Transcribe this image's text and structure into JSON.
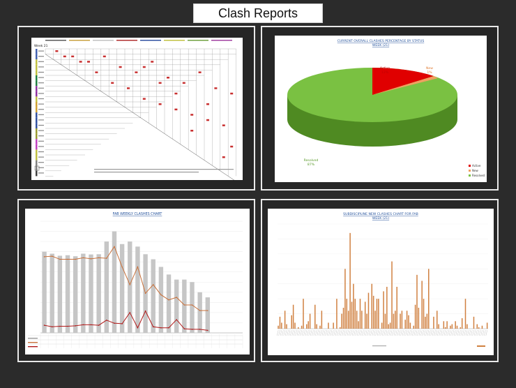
{
  "header": {
    "title": "Clash Reports"
  },
  "matrix_report": {
    "corner_label": "Week 21"
  },
  "pie_report": {
    "title": "CURRENT OVERALL CLASHES PERCENTAGE BY STATUS",
    "subtitle": "WEEK (21)",
    "chart_data": {
      "type": "pie",
      "labels": [
        "Active",
        "New",
        "Resolved"
      ],
      "values": [
        12,
        1,
        87
      ],
      "colors": [
        "#e00000",
        "#f0a060",
        "#7ac142"
      ]
    },
    "slice_labels": {
      "active_name": "Active",
      "active_pct": "12%",
      "new_name": "New",
      "new_pct": "1%",
      "resolved_name": "Resolved",
      "resolved_pct": "87%"
    },
    "legend": [
      "Active",
      "New",
      "Resolved"
    ]
  },
  "weekly_report": {
    "title": "FAB WEEKLY CLASHES CHART",
    "chart_data": {
      "type": "bar",
      "categories": [
        "1",
        "2",
        "3",
        "4",
        "5",
        "6",
        "7",
        "8",
        "9",
        "10",
        "11",
        "12",
        "13",
        "14",
        "15",
        "16",
        "17",
        "18",
        "19",
        "20",
        "21",
        "22",
        "23",
        "24",
        "25",
        "26"
      ],
      "series": [
        {
          "name": "Total",
          "values": [
            1600,
            1560,
            1520,
            1530,
            1510,
            1560,
            1545,
            1550,
            1800,
            2000,
            1750,
            1800,
            1700,
            1550,
            1450,
            1300,
            1150,
            1050,
            1050,
            1000,
            800,
            700,
            0,
            0,
            0,
            0
          ]
        },
        {
          "name": "Active",
          "values": [
            1500,
            1510,
            1450,
            1450,
            1450,
            1480,
            1460,
            1480,
            1470,
            1700,
            1300,
            950,
            1300,
            780,
            950,
            750,
            650,
            700,
            550,
            550,
            440,
            440,
            0,
            0,
            0,
            0
          ]
        },
        {
          "name": "New",
          "values": [
            150,
            120,
            130,
            130,
            140,
            160,
            160,
            150,
            250,
            190,
            180,
            400,
            100,
            430,
            120,
            100,
            100,
            260,
            80,
            70,
            70,
            50,
            0,
            0,
            0,
            0
          ]
        }
      ],
      "ylim": [
        0,
        2200
      ]
    }
  },
  "sub_report": {
    "title": "SUBDISCIPLINE NEW CLASHES CHART FOR FAB",
    "subtitle": "WEEK (21)",
    "chart_data": {
      "type": "bar",
      "values": [
        2,
        8,
        4,
        0,
        12,
        3,
        0,
        0,
        9,
        16,
        4,
        0,
        1,
        0,
        2,
        20,
        0,
        3,
        5,
        10,
        0,
        0,
        16,
        3,
        0,
        2,
        12,
        0,
        0,
        0,
        4,
        0,
        0,
        4,
        0,
        20,
        0,
        1,
        10,
        14,
        40,
        20,
        12,
        64,
        18,
        30,
        20,
        12,
        5,
        20,
        12,
        0,
        18,
        10,
        24,
        0,
        30,
        22,
        12,
        20,
        20,
        0,
        4,
        25,
        10,
        28,
        3,
        4,
        45,
        10,
        12,
        28,
        0,
        10,
        12,
        0,
        6,
        12,
        9,
        4,
        0,
        2,
        16,
        36,
        14,
        0,
        32,
        20,
        8,
        10,
        40,
        0,
        0,
        8,
        0,
        12,
        3,
        0,
        0,
        5,
        1,
        5,
        0,
        2,
        3,
        0,
        5,
        2,
        0,
        1,
        7,
        0,
        20,
        3,
        0,
        0,
        0,
        8,
        0,
        3,
        1,
        0,
        2,
        0,
        0,
        4
      ]
    }
  }
}
